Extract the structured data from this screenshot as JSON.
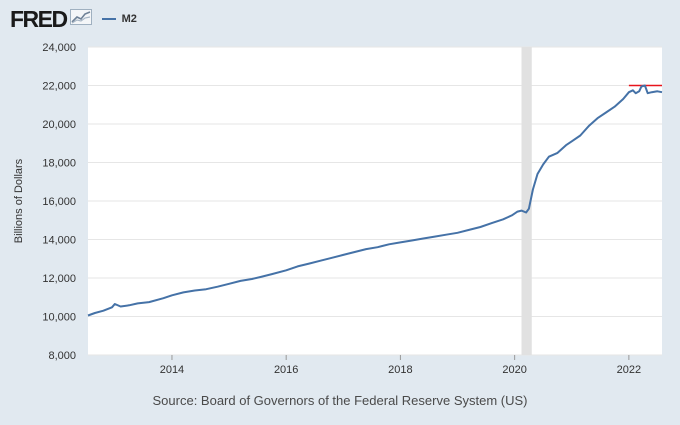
{
  "header": {
    "logo_text": "FRED",
    "logo_icon": "line-chart-icon",
    "legend_label": "M2"
  },
  "source_text": "Source: Board of Governors of the Federal Reserve System (US)",
  "colors": {
    "background": "#e1e9f0",
    "plot_background": "#ffffff",
    "series": "#4572a7",
    "recession": "#e1e1e1",
    "reference_line": "#e8141c",
    "grid": "#e6e6e6"
  },
  "chart_data": {
    "type": "line",
    "title": "",
    "xlabel": "",
    "ylabel": "Billions of Dollars",
    "xlim": [
      2012.53,
      2022.58
    ],
    "ylim": [
      8000,
      24000
    ],
    "y_ticks": [
      8000,
      10000,
      12000,
      14000,
      16000,
      18000,
      20000,
      22000,
      24000
    ],
    "y_tick_labels": [
      "8,000",
      "10,000",
      "12,000",
      "14,000",
      "16,000",
      "18,000",
      "20,000",
      "22,000",
      "24,000"
    ],
    "x_ticks": [
      2014,
      2016,
      2018,
      2020,
      2022
    ],
    "x_tick_labels": [
      "2014",
      "2016",
      "2018",
      "2020",
      "2022"
    ],
    "grid": true,
    "legend_placement": "top-left",
    "recession": {
      "start": 2020.12,
      "end": 2020.3
    },
    "reference_line": {
      "x_start": 2022.0,
      "x_end": 2022.58,
      "y": 22000
    },
    "series": [
      {
        "name": "M2",
        "x": [
          2012.53,
          2012.65,
          2012.8,
          2012.95,
          2013.0,
          2013.1,
          2013.25,
          2013.4,
          2013.6,
          2013.85,
          2014.0,
          2014.2,
          2014.4,
          2014.6,
          2014.8,
          2015.0,
          2015.2,
          2015.4,
          2015.55,
          2015.75,
          2016.0,
          2016.2,
          2016.4,
          2016.6,
          2016.8,
          2017.0,
          2017.2,
          2017.4,
          2017.6,
          2017.8,
          2018.0,
          2018.2,
          2018.4,
          2018.6,
          2018.8,
          2019.0,
          2019.2,
          2019.4,
          2019.6,
          2019.8,
          2019.95,
          2020.05,
          2020.12,
          2020.2,
          2020.25,
          2020.32,
          2020.4,
          2020.5,
          2020.6,
          2020.75,
          2020.9,
          2021.0,
          2021.15,
          2021.3,
          2021.45,
          2021.6,
          2021.75,
          2021.9,
          2022.0,
          2022.07,
          2022.12,
          2022.18,
          2022.22,
          2022.28,
          2022.33,
          2022.4,
          2022.5,
          2022.58
        ],
        "y": [
          10050,
          10180,
          10300,
          10480,
          10650,
          10520,
          10580,
          10680,
          10750,
          10950,
          11100,
          11250,
          11350,
          11420,
          11550,
          11700,
          11850,
          11950,
          12050,
          12200,
          12400,
          12600,
          12750,
          12900,
          13050,
          13200,
          13350,
          13500,
          13600,
          13750,
          13850,
          13950,
          14050,
          14150,
          14250,
          14350,
          14500,
          14650,
          14850,
          15050,
          15250,
          15450,
          15500,
          15400,
          15600,
          16600,
          17400,
          17900,
          18300,
          18500,
          18900,
          19100,
          19400,
          19900,
          20300,
          20600,
          20900,
          21300,
          21650,
          21750,
          21600,
          21700,
          21950,
          22000,
          21600,
          21650,
          21700,
          21650
        ]
      }
    ]
  }
}
